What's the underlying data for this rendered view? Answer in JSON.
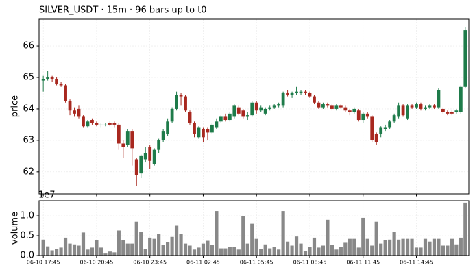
{
  "chart_data": [
    {
      "type": "candlestick",
      "title": "SILVER_USDT  ·  15m  ·  96 bars up to t0",
      "ylabel": "price",
      "up_color": "#1e7b4a",
      "down_color": "#a8281f",
      "grid": true,
      "ylim": [
        61.3,
        66.85
      ],
      "yticks": [
        62,
        63,
        64,
        65,
        66
      ],
      "open": [
        64.9,
        64.95,
        65.0,
        64.95,
        64.8,
        64.75,
        64.25,
        63.95,
        64.0,
        63.75,
        63.45,
        63.65,
        63.55,
        63.5,
        63.5,
        63.55,
        63.55,
        63.5,
        62.9,
        62.85,
        63.3,
        62.4,
        61.95,
        62.4,
        62.8,
        62.25,
        62.7,
        63.0,
        63.2,
        63.6,
        64.0,
        64.45,
        64.4,
        63.9,
        63.55,
        63.1,
        63.35,
        63.35,
        63.25,
        63.4,
        63.6,
        63.75,
        63.65,
        63.75,
        64.05,
        63.95,
        63.75,
        63.8,
        64.2,
        63.95,
        63.85,
        64.0,
        64.05,
        64.1,
        64.1,
        64.5,
        64.45,
        64.5,
        64.5,
        64.55,
        64.5,
        64.4,
        64.2,
        64.05,
        64.15,
        64.1,
        64.0,
        64.1,
        64.05,
        63.95,
        63.9,
        63.95,
        63.65,
        63.85,
        63.75,
        63.2,
        63.2,
        63.35,
        63.4,
        63.6,
        63.75,
        64.1,
        63.7,
        64.1,
        64.05,
        64.15,
        64.0,
        64.05,
        64.1,
        64.05,
        64.0,
        63.9,
        63.9,
        63.9,
        63.9,
        64.7
      ],
      "high": [
        65.05,
        65.2,
        65.05,
        65.0,
        64.85,
        64.8,
        64.3,
        64.05,
        64.1,
        63.8,
        63.65,
        63.7,
        63.6,
        63.55,
        63.55,
        63.6,
        63.6,
        63.55,
        63.0,
        63.35,
        63.35,
        62.45,
        62.55,
        62.8,
        62.85,
        62.75,
        63.05,
        63.35,
        63.7,
        64.05,
        64.55,
        64.5,
        64.45,
        63.95,
        63.6,
        63.45,
        63.4,
        63.4,
        63.55,
        63.7,
        63.8,
        63.85,
        63.9,
        64.15,
        64.1,
        64.0,
        63.9,
        64.25,
        64.25,
        64.1,
        64.05,
        64.1,
        64.15,
        64.2,
        64.55,
        64.6,
        64.55,
        64.7,
        64.6,
        64.6,
        64.55,
        64.45,
        64.25,
        64.2,
        64.2,
        64.15,
        64.15,
        64.15,
        64.1,
        64.0,
        64.05,
        64.0,
        63.9,
        63.9,
        63.8,
        63.25,
        63.45,
        63.5,
        63.65,
        63.85,
        64.2,
        64.15,
        64.15,
        64.15,
        64.2,
        64.2,
        64.1,
        64.15,
        64.15,
        64.65,
        64.05,
        63.95,
        63.95,
        64.0,
        64.75,
        66.6
      ],
      "low": [
        64.55,
        64.9,
        64.85,
        64.75,
        64.7,
        64.2,
        63.8,
        63.75,
        63.7,
        63.4,
        63.4,
        63.5,
        63.45,
        63.4,
        63.45,
        63.45,
        63.4,
        62.7,
        62.45,
        62.8,
        62.2,
        61.55,
        61.8,
        62.3,
        62.1,
        62.2,
        62.6,
        62.95,
        63.15,
        63.55,
        63.95,
        64.1,
        63.9,
        63.5,
        63.1,
        63.05,
        62.95,
        63.0,
        63.2,
        63.35,
        63.55,
        63.6,
        63.6,
        63.7,
        63.8,
        63.7,
        63.65,
        63.75,
        63.85,
        63.9,
        63.8,
        63.95,
        64.0,
        64.05,
        64.05,
        64.4,
        64.35,
        64.45,
        64.45,
        64.45,
        64.35,
        64.15,
        64.0,
        64.0,
        64.05,
        63.95,
        63.95,
        64.0,
        63.9,
        63.8,
        63.85,
        63.6,
        63.55,
        63.7,
        62.95,
        62.85,
        63.1,
        63.3,
        63.35,
        63.55,
        63.7,
        63.75,
        63.65,
        64.0,
        64.0,
        63.95,
        63.95,
        64.0,
        64.0,
        64.0,
        63.85,
        63.8,
        63.8,
        63.85,
        63.85,
        64.65
      ],
      "close": [
        64.95,
        65.0,
        64.95,
        64.8,
        64.75,
        64.25,
        63.95,
        63.85,
        63.75,
        63.45,
        63.6,
        63.55,
        63.5,
        63.5,
        63.5,
        63.5,
        63.5,
        62.9,
        62.8,
        63.3,
        62.75,
        61.9,
        62.5,
        62.6,
        62.35,
        62.7,
        63.0,
        63.3,
        63.6,
        64.0,
        64.45,
        64.4,
        63.95,
        63.55,
        63.2,
        63.4,
        63.1,
        63.25,
        63.5,
        63.6,
        63.75,
        63.65,
        63.85,
        64.1,
        63.85,
        63.75,
        63.8,
        64.2,
        63.95,
        64.05,
        64.0,
        64.05,
        64.1,
        64.15,
        64.5,
        64.45,
        64.5,
        64.55,
        64.55,
        64.5,
        64.4,
        64.2,
        64.05,
        64.15,
        64.1,
        64.0,
        64.1,
        64.05,
        63.95,
        63.9,
        64.0,
        63.65,
        63.85,
        63.75,
        63.0,
        62.95,
        63.4,
        63.4,
        63.6,
        63.8,
        64.1,
        63.8,
        64.1,
        64.05,
        64.15,
        64.0,
        64.05,
        64.1,
        64.05,
        64.6,
        63.9,
        63.85,
        63.85,
        63.95,
        64.7,
        66.5
      ]
    },
    {
      "type": "bar",
      "ylabel": "volume",
      "offset_label": "1e7",
      "color": "#888888",
      "grid": true,
      "ylim": [
        0,
        1.38
      ],
      "yticks": [
        {
          "value": 0,
          "label": "0.0"
        },
        0.5,
        {
          "value": 1,
          "label": "1.0"
        }
      ],
      "categories": [
        "06-10 17:45",
        null,
        null,
        null,
        null,
        null,
        null,
        null,
        null,
        null,
        null,
        null,
        "06-10 20:45",
        null,
        null,
        null,
        null,
        null,
        null,
        null,
        null,
        null,
        null,
        null,
        "06-10 23:45",
        null,
        null,
        null,
        null,
        null,
        null,
        null,
        null,
        null,
        null,
        null,
        "06-11 02:45",
        null,
        null,
        null,
        null,
        null,
        null,
        null,
        null,
        null,
        null,
        null,
        "06-11 05:45",
        null,
        null,
        null,
        null,
        null,
        null,
        null,
        null,
        null,
        null,
        null,
        "06-11 08:45",
        null,
        null,
        null,
        null,
        null,
        null,
        null,
        null,
        null,
        null,
        null,
        "06-11 11:45",
        null,
        null,
        null,
        null,
        null,
        null,
        null,
        null,
        null,
        null,
        null,
        "06-11 14:45",
        null,
        null,
        null,
        null,
        null,
        null,
        null,
        null,
        null,
        null,
        null
      ],
      "values": [
        0.4,
        0.23,
        0.13,
        0.17,
        0.2,
        0.45,
        0.3,
        0.28,
        0.25,
        0.58,
        0.15,
        0.2,
        0.38,
        0.2,
        0.05,
        0.1,
        0.08,
        0.63,
        0.38,
        0.3,
        0.3,
        0.85,
        0.6,
        0.17,
        0.45,
        0.42,
        0.55,
        0.27,
        0.33,
        0.47,
        0.75,
        0.55,
        0.3,
        0.25,
        0.15,
        0.2,
        0.3,
        0.37,
        0.27,
        1.12,
        0.18,
        0.18,
        0.22,
        0.21,
        0.15,
        1.0,
        0.3,
        0.8,
        0.42,
        0.17,
        0.28,
        0.18,
        0.22,
        0.15,
        1.12,
        0.35,
        0.25,
        0.48,
        0.3,
        0.12,
        0.22,
        0.45,
        0.2,
        0.25,
        0.9,
        0.27,
        0.15,
        0.22,
        0.32,
        0.42,
        0.42,
        0.2,
        0.95,
        0.42,
        0.25,
        0.85,
        0.3,
        0.38,
        0.4,
        0.6,
        0.4,
        0.42,
        0.42,
        0.42,
        0.2,
        0.2,
        0.42,
        0.35,
        0.42,
        0.42,
        0.25,
        0.25,
        0.42,
        0.28,
        0.45,
        1.33
      ]
    }
  ]
}
